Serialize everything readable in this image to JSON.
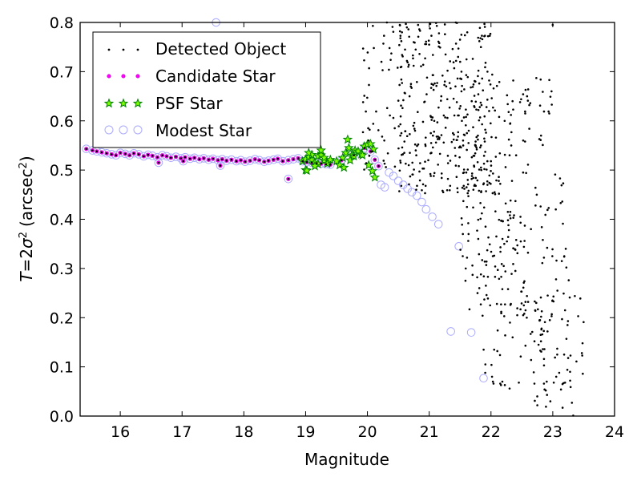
{
  "chart_data": {
    "type": "scatter",
    "title": "",
    "xlabel": "Magnitude",
    "ylabel": "T = 2σ² (arcsec²)",
    "ylabel_parts": {
      "T": "T",
      "eq": "=2",
      "sigma": "σ",
      "sup": "2",
      "unit_open": "(arcsec",
      "unit_sup": "2",
      "unit_close": ")"
    },
    "xlim": [
      15.35,
      24.0
    ],
    "ylim": [
      0.0,
      0.8
    ],
    "xticks": [
      "16",
      "17",
      "18",
      "19",
      "20",
      "21",
      "22",
      "23",
      "24"
    ],
    "yticks": [
      "0.0",
      "0.1",
      "0.2",
      "0.3",
      "0.4",
      "0.5",
      "0.6",
      "0.7",
      "0.8"
    ],
    "grid": false,
    "legend_position": "top-left",
    "legend": [
      "Detected Object",
      "Candidate Star",
      "PSF Star",
      "Modest Star"
    ],
    "colors": {
      "detected": "#000000",
      "candidate": "#ff00ff",
      "psf_fill": "#7fff00",
      "psf_edge": "#008000",
      "modest": "#aaaaff"
    },
    "series": [
      {
        "name": "Detected Object",
        "marker": "dot",
        "x": [],
        "y": [],
        "note_generated": {
          "clusters": [
            {
              "x_range": [
                19.9,
                20.6
              ],
              "y_range": [
                0.5,
                0.8
              ],
              "n": 60
            },
            {
              "x_range": [
                20.5,
                22.0
              ],
              "y_range": [
                0.45,
                0.8
              ],
              "n": 320
            },
            {
              "x_range": [
                21.5,
                22.6
              ],
              "y_range": [
                0.2,
                0.7
              ],
              "n": 170
            },
            {
              "x_range": [
                21.8,
                23.3
              ],
              "y_range": [
                0.05,
                0.5
              ],
              "n": 130
            },
            {
              "x_range": [
                22.6,
                23.5
              ],
              "y_range": [
                0.0,
                0.25
              ],
              "n": 60
            },
            {
              "x_range": [
                22.6,
                23.0
              ],
              "y_range": [
                0.55,
                0.8
              ],
              "n": 20
            }
          ]
        }
      },
      {
        "name": "Candidate Star",
        "marker": "circle-small",
        "x": [
          15.45,
          15.55,
          15.62,
          15.7,
          15.78,
          15.86,
          15.93,
          16.0,
          16.08,
          16.15,
          16.22,
          16.3,
          16.38,
          16.45,
          16.52,
          16.6,
          16.68,
          16.75,
          16.82,
          16.9,
          16.98,
          17.05,
          17.13,
          17.2,
          17.28,
          17.35,
          17.43,
          17.5,
          17.58,
          17.65,
          17.72,
          17.8,
          17.88,
          17.95,
          18.02,
          18.1,
          18.18,
          18.25,
          18.33,
          18.4,
          18.48,
          18.55,
          18.63,
          18.72,
          18.8,
          18.88,
          18.95,
          19.02,
          19.1,
          19.18,
          19.25,
          19.33,
          19.4,
          17.62,
          18.72,
          16.62,
          17.02,
          19.58,
          19.78,
          19.95,
          20.05,
          20.12,
          20.18
        ],
        "y": [
          0.543,
          0.54,
          0.538,
          0.536,
          0.534,
          0.532,
          0.53,
          0.535,
          0.533,
          0.53,
          0.534,
          0.532,
          0.528,
          0.531,
          0.529,
          0.526,
          0.53,
          0.528,
          0.525,
          0.527,
          0.524,
          0.526,
          0.523,
          0.525,
          0.522,
          0.524,
          0.521,
          0.523,
          0.52,
          0.522,
          0.519,
          0.521,
          0.518,
          0.52,
          0.517,
          0.519,
          0.522,
          0.52,
          0.517,
          0.519,
          0.521,
          0.523,
          0.518,
          0.52,
          0.522,
          0.524,
          0.518,
          0.516,
          0.515,
          0.514,
          0.513,
          0.512,
          0.511,
          0.509,
          0.482,
          0.515,
          0.518,
          0.52,
          0.53,
          0.545,
          0.538,
          0.521,
          0.508
        ]
      },
      {
        "name": "PSF Star",
        "marker": "star",
        "x": [
          18.95,
          19.0,
          19.05,
          19.1,
          19.15,
          19.2,
          19.25,
          19.3,
          19.35,
          19.4,
          19.0,
          19.1,
          19.2,
          19.3,
          19.05,
          19.15,
          19.25,
          19.5,
          19.55,
          19.6,
          19.65,
          19.7,
          19.75,
          19.8,
          19.85,
          19.9,
          19.95,
          20.0,
          20.05,
          20.1,
          19.68,
          19.72,
          19.78,
          19.62,
          20.08,
          20.12,
          20.02,
          19.92,
          19.02
        ],
        "y": [
          0.518,
          0.522,
          0.526,
          0.52,
          0.515,
          0.528,
          0.53,
          0.519,
          0.513,
          0.521,
          0.5,
          0.531,
          0.512,
          0.525,
          0.535,
          0.508,
          0.54,
          0.518,
          0.51,
          0.525,
          0.535,
          0.545,
          0.53,
          0.54,
          0.538,
          0.532,
          0.548,
          0.552,
          0.553,
          0.542,
          0.562,
          0.52,
          0.528,
          0.505,
          0.498,
          0.485,
          0.51,
          0.53,
          0.499
        ]
      },
      {
        "name": "Modest Star",
        "marker": "open-circle",
        "x": [
          15.45,
          15.55,
          15.62,
          15.7,
          15.78,
          15.86,
          15.93,
          16.0,
          16.08,
          16.15,
          16.22,
          16.3,
          16.38,
          16.45,
          16.52,
          16.6,
          16.68,
          16.75,
          16.82,
          16.9,
          16.98,
          17.05,
          17.13,
          17.2,
          17.28,
          17.35,
          17.43,
          17.5,
          17.58,
          17.65,
          17.72,
          17.8,
          17.88,
          17.95,
          18.02,
          18.1,
          18.18,
          18.25,
          18.33,
          18.4,
          18.48,
          18.55,
          18.63,
          18.72,
          18.8,
          18.88,
          18.95,
          19.02,
          19.1,
          19.18,
          19.25,
          19.33,
          19.4,
          17.62,
          18.72,
          16.62,
          17.02,
          19.58,
          19.78,
          19.95,
          20.05,
          20.12,
          20.18,
          20.22,
          20.28,
          20.35,
          20.42,
          20.5,
          20.58,
          20.65,
          20.72,
          20.8,
          20.88,
          20.95,
          21.05,
          21.15,
          21.35,
          21.48,
          21.68,
          21.88,
          17.55
        ],
        "y": [
          0.543,
          0.54,
          0.538,
          0.536,
          0.534,
          0.532,
          0.53,
          0.535,
          0.533,
          0.53,
          0.534,
          0.532,
          0.528,
          0.531,
          0.529,
          0.526,
          0.53,
          0.528,
          0.525,
          0.527,
          0.524,
          0.526,
          0.523,
          0.525,
          0.522,
          0.524,
          0.521,
          0.523,
          0.52,
          0.522,
          0.519,
          0.521,
          0.518,
          0.52,
          0.517,
          0.519,
          0.522,
          0.52,
          0.517,
          0.519,
          0.521,
          0.523,
          0.518,
          0.52,
          0.522,
          0.524,
          0.518,
          0.516,
          0.515,
          0.514,
          0.513,
          0.512,
          0.511,
          0.509,
          0.482,
          0.515,
          0.518,
          0.52,
          0.53,
          0.545,
          0.538,
          0.521,
          0.508,
          0.47,
          0.465,
          0.495,
          0.488,
          0.478,
          0.47,
          0.462,
          0.455,
          0.448,
          0.435,
          0.42,
          0.405,
          0.39,
          0.172,
          0.345,
          0.17,
          0.077,
          0.8
        ]
      }
    ]
  }
}
